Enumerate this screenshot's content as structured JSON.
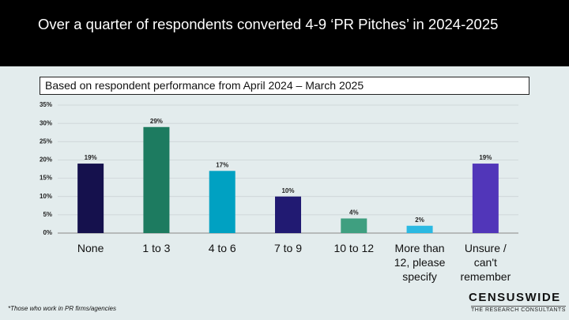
{
  "chart_data": {
    "type": "bar",
    "title": "Over a quarter of respondents converted 4-9 ‘PR Pitches’ in 2024-2025",
    "subtitle": "Based on respondent performance from April 2024 – March 2025",
    "categories": [
      "None",
      "1 to 3",
      "4 to 6",
      "7 to 9",
      "10 to 12",
      "More than 12, please specify",
      "Unsure / can't remember"
    ],
    "values": [
      19,
      29,
      17,
      10,
      4,
      2,
      19
    ],
    "value_labels": [
      "19%",
      "29%",
      "17%",
      "10%",
      "4%",
      "2%",
      "19%"
    ],
    "colors": [
      "#15114d",
      "#1d7b60",
      "#00a1c2",
      "#211a72",
      "#3f9f80",
      "#2ab9e2",
      "#5136b9"
    ],
    "ylim": [
      0,
      35
    ],
    "yticks": [
      {
        "value": 0,
        "label": "0%"
      },
      {
        "value": 5,
        "label": "5%"
      },
      {
        "value": 10,
        "label": "10%"
      },
      {
        "value": 15,
        "label": "15%"
      },
      {
        "value": 20,
        "label": "20%"
      },
      {
        "value": 25,
        "label": "25%"
      },
      {
        "value": 30,
        "label": "30%"
      },
      {
        "value": 35,
        "label": "35%"
      }
    ],
    "grid": true
  },
  "footnote": "*Those who work in PR firms/agencies",
  "logo": {
    "name": "CENSUSWIDE",
    "tagline": "THE RESEARCH CONSULTANTS"
  }
}
